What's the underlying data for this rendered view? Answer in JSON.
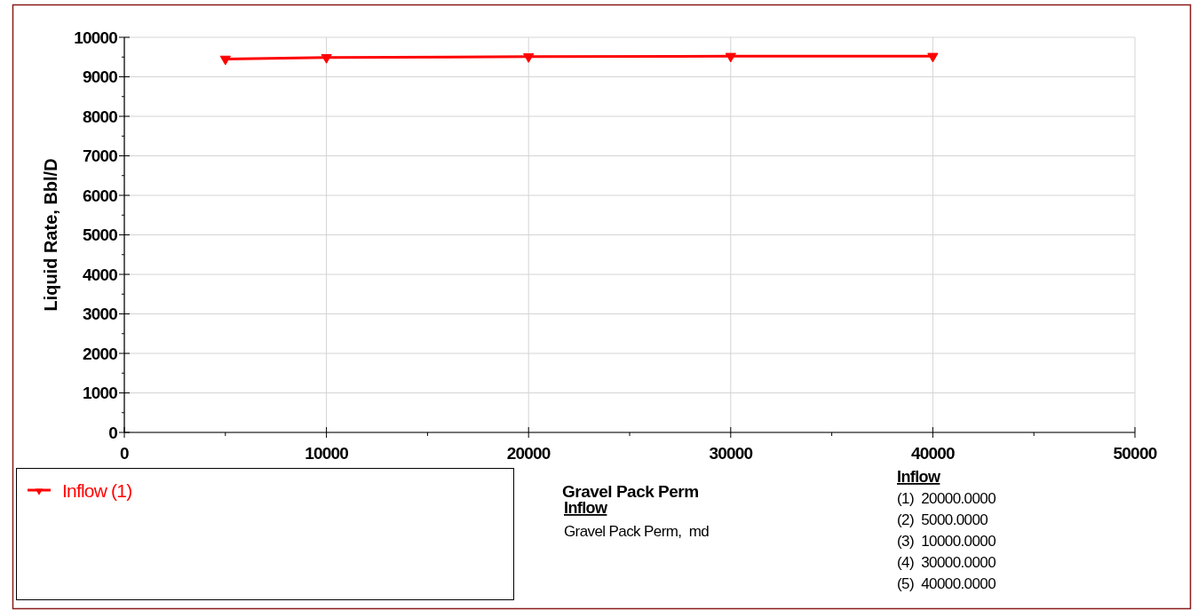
{
  "chart_data": {
    "type": "line",
    "xlabel": "Gravel Pack Perm",
    "ylabel": "Liquid Rate, Bbl/D",
    "x": [
      5000,
      10000,
      20000,
      30000,
      40000
    ],
    "series": [
      {
        "name": "Inflow (1)",
        "color": "#ff0000",
        "values": [
          9450,
          9490,
          9510,
          9520,
          9520
        ]
      }
    ],
    "xlim": [
      0,
      50000
    ],
    "xticks": [
      0,
      {
        "value": 5000,
        "label": null
      },
      10000,
      {
        "value": 15000,
        "label": null
      },
      20000,
      {
        "value": 25000,
        "label": null
      },
      30000,
      {
        "value": 35000,
        "label": null
      },
      40000,
      {
        "value": 45000,
        "label": null
      },
      50000
    ],
    "ylim": [
      0,
      10000
    ],
    "yticks": [
      0,
      {
        "value": 500,
        "label": null
      },
      1000,
      {
        "value": 1500,
        "label": null
      },
      2000,
      {
        "value": 2500,
        "label": null
      },
      3000,
      {
        "value": 3500,
        "label": null
      },
      4000,
      {
        "value": 4500,
        "label": null
      },
      5000,
      {
        "value": 5500,
        "label": null
      },
      6000,
      {
        "value": 6500,
        "label": null
      },
      7000,
      {
        "value": 7500,
        "label": null
      },
      8000,
      {
        "value": 8500,
        "label": null
      },
      9000,
      {
        "value": 9500,
        "label": null
      },
      10000
    ],
    "grid": true,
    "legend": "bottom left",
    "marker": "triangle",
    "line_style": "solid",
    "annotations": [
      "Inflow",
      "Gravel Pack Perm,  md",
      "Inflow",
      "(1)  20000.0000",
      "(2)  5000.0000",
      "(3)  10000.0000",
      "(4)  30000.0000",
      "(5)  40000.0000"
    ]
  }
}
